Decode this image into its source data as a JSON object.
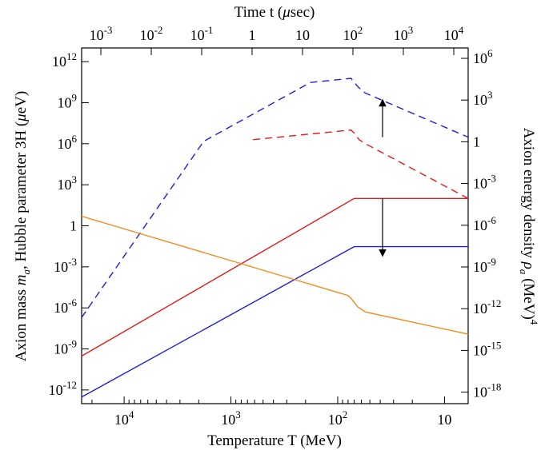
{
  "chart_data": {
    "type": "line",
    "title": "",
    "xlabel": "Temperature T (MeV)",
    "x2label": "Time t (μsec)",
    "ylabel": "Axion mass m_a,  Hubble parameter 3H (μeV)",
    "y2label": "Axion energy density ρ_a (MeV)^4",
    "xscale": "log",
    "xreversed": true,
    "xlim": [
      25000,
      6
    ],
    "x_ticks": [
      {
        "value": 10000,
        "label": "10^4"
      },
      {
        "value": 1000,
        "label": "10^3"
      },
      {
        "value": 100,
        "label": "10^2"
      },
      {
        "value": 10,
        "label": "10"
      }
    ],
    "x2_ticks": [
      {
        "label": "10^-3"
      },
      {
        "label": "10^-2"
      },
      {
        "label": "10^-1"
      },
      {
        "label": "1"
      },
      {
        "label": "10"
      },
      {
        "label": "10^2"
      },
      {
        "label": "10^3"
      },
      {
        "label": "10^4"
      }
    ],
    "yscale": "log",
    "ylim": [
      1e-13,
      10000000000000.0
    ],
    "y_ticks": [
      {
        "value": 1000000000000.0,
        "label": "10^12"
      },
      {
        "value": 1000000000.0,
        "label": "10^9"
      },
      {
        "value": 1000000.0,
        "label": "10^6"
      },
      {
        "value": 1000.0,
        "label": "10^3"
      },
      {
        "value": 1,
        "label": "1"
      },
      {
        "value": 0.001,
        "label": "10^-3"
      },
      {
        "value": 1e-06,
        "label": "10^-6"
      },
      {
        "value": 1e-09,
        "label": "10^-9"
      },
      {
        "value": 1e-12,
        "label": "10^-12"
      }
    ],
    "y2_ticks": [
      {
        "label": "10^6"
      },
      {
        "label": "10^3"
      },
      {
        "label": "1"
      },
      {
        "label": "10^-3"
      },
      {
        "label": "10^-6"
      },
      {
        "label": "10^-9"
      },
      {
        "label": "10^-12"
      },
      {
        "label": "10^-15"
      },
      {
        "label": "10^-18"
      }
    ],
    "series": [
      {
        "color": "#1f1fd6",
        "style": "dashed",
        "axis": "right",
        "x": [
          25000,
          1800,
          180,
          75,
          70,
          63,
          55,
          6
        ],
        "y": [
          2e-07,
          1500000.0,
          30000000000.0,
          60000000000.0,
          30000000000.0,
          12000000000.0,
          5000000000.0,
          3000000.0
        ]
      },
      {
        "color": "#e01b1b",
        "style": "dashed",
        "axis": "right",
        "x": [
          620,
          75,
          70,
          63,
          55,
          6
        ],
        "y": [
          2000000.0,
          10000000.0,
          6000000.0,
          2000000.0,
          1000000.0,
          100.0
        ]
      },
      {
        "color": "#e01b1b",
        "style": "solid",
        "axis": "left",
        "x": [
          25000,
          70,
          6
        ],
        "y": [
          3e-10,
          100.0,
          100.0
        ]
      },
      {
        "color": "#1f1fd6",
        "style": "solid",
        "axis": "left",
        "x": [
          25000,
          70,
          6
        ],
        "y": [
          3e-13,
          0.03,
          0.03
        ]
      },
      {
        "color": "#f28a1e",
        "style": "solid",
        "axis": "left",
        "x": [
          25000,
          80,
          75,
          65,
          55,
          6
        ],
        "y": [
          5,
          8e-06,
          5e-06,
          1.2e-06,
          5e-07,
          1.2e-08
        ]
      }
    ],
    "annotations": [
      {
        "type": "arrow",
        "x": 38,
        "y_from": 3000000.0,
        "y_to": 1000000000.0
      },
      {
        "type": "arrow",
        "x": 38,
        "y_from": 100.0,
        "y_to": 0.01
      }
    ],
    "grid": false,
    "legend": "none"
  }
}
